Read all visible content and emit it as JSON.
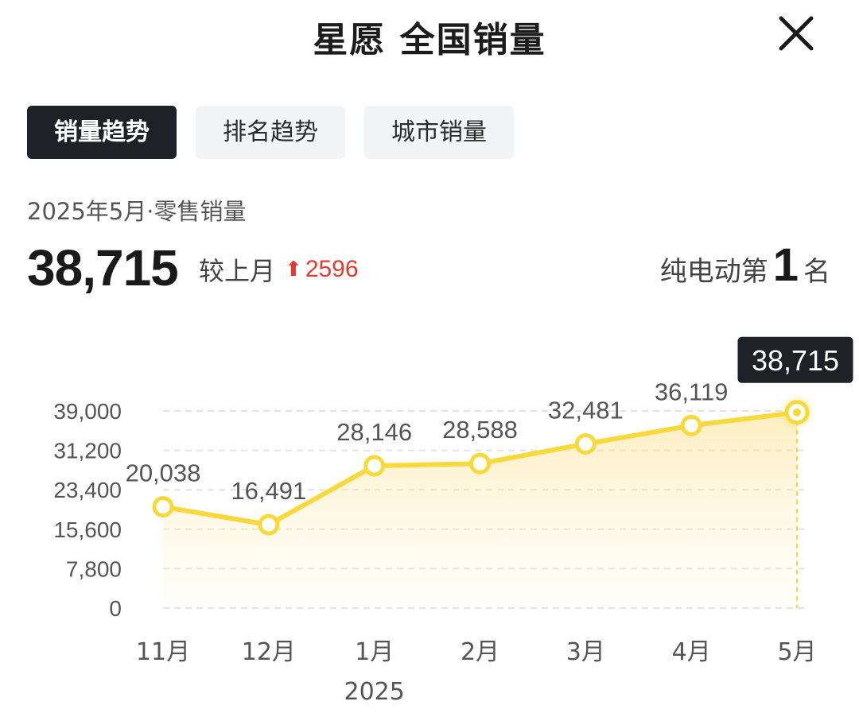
{
  "header": {
    "title": "星愿 全国销量",
    "close_icon": "close-icon"
  },
  "tabs": [
    {
      "label": "销量趋势",
      "active": true
    },
    {
      "label": "排名趋势",
      "active": false
    },
    {
      "label": "城市销量",
      "active": false
    }
  ],
  "summary": {
    "period": "2025年5月·零售销量",
    "value": "38,715",
    "compare_label": "较上月",
    "arrow_icon": "arrow-up-icon",
    "delta": "2596",
    "rank_prefix": "纯电动第",
    "rank": "1",
    "rank_suffix": "名"
  },
  "colors": {
    "accent": "#f8d93c",
    "up": "#e23a2e",
    "dark": "#1e2126"
  },
  "chart_data": {
    "type": "area",
    "categories": [
      "11月",
      "12月",
      "1月",
      "2月",
      "3月",
      "4月",
      "5月"
    ],
    "x_year_label": "2025",
    "series": [
      {
        "values": [
          20038,
          16491,
          28146,
          28588,
          32481,
          36119,
          38715
        ]
      }
    ],
    "data_labels": [
      "20,038",
      "16,491",
      "28,146",
      "28,588",
      "32,481",
      "36,119",
      "38,715"
    ],
    "y_ticks": [
      0,
      7800,
      15600,
      23400,
      31200,
      39000
    ],
    "y_tick_labels": [
      "0",
      "7,800",
      "15,600",
      "23,400",
      "31,200",
      "39,000"
    ],
    "ylim": [
      0,
      39000
    ],
    "grid": true,
    "highlight_index": 6
  }
}
